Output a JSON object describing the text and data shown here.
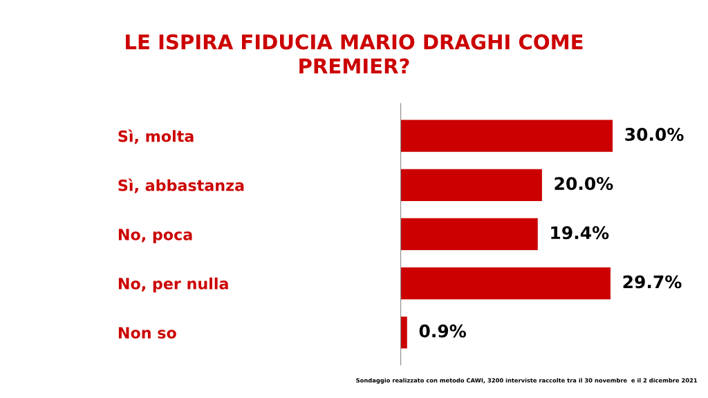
{
  "chart_data": {
    "type": "bar",
    "orientation": "horizontal",
    "title": "LE ISPIRA FIDUCIA MARIO DRAGHI COME\nPREMIER?",
    "categories": [
      "Sì, molta",
      "Sì, abbastanza",
      "No, poca",
      "No, per nulla",
      "Non so"
    ],
    "values": [
      30.0,
      20.0,
      19.4,
      29.7,
      0.9
    ],
    "value_labels": [
      "30.0%",
      "20.0%",
      "19.4%",
      "29.7%",
      "0.9%"
    ],
    "color": "#cc0000",
    "grid": false,
    "legend": false,
    "tick_labels": "y",
    "annotations": [
      "Sondaggio realizzato con metodo CAWI, 3200 interviste raccolte tra il 30 novembre  e il 2 dicembre 2021"
    ]
  }
}
